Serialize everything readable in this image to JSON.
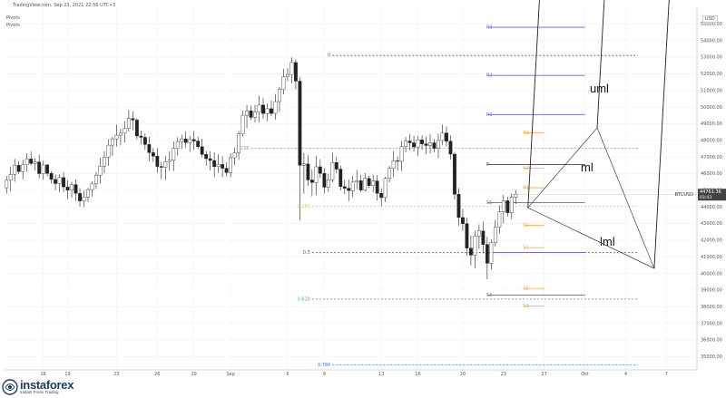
{
  "header": {
    "source": "TradingView.com, Sep 23, 2021 22:56 UTC+3",
    "indicator_1": "Pivots",
    "indicator_2": "Pivots"
  },
  "logo": {
    "name": "instaforex",
    "tagline": "Instant Forex Trading"
  },
  "colors": {
    "candle": "#222222",
    "pivot_line": "#7b5cc9",
    "pivot_p": "#444444",
    "pivot_mid": "#f0a93b",
    "fib": "#d7d26a",
    "fib_mid": "#bbbbbb",
    "fib_618": "#45b88b",
    "fib_786": "#3c7fd6",
    "fib_0236": "#e07b8a",
    "pitchfork": "#222222",
    "price_tag": "#444444"
  },
  "chart_data": {
    "type": "candlestick",
    "symbol": "BTCUSD",
    "last_price": "44761.36",
    "countdown": "03:43",
    "ylim": [
      34200,
      56000
    ],
    "y_ticks": [
      35000,
      36000,
      37000,
      38000,
      39000,
      40000,
      41000,
      42000,
      43000,
      44000,
      45000,
      46000,
      47000,
      48000,
      49000,
      50000,
      51000,
      52000,
      53000,
      54000,
      55000
    ],
    "y_tick_labels": [
      "35000.00",
      "36000.00",
      "37000.00",
      "38000.00",
      "39000.00",
      "40000.00",
      "41000.00",
      "42000.00",
      "43000.00",
      "44000.00",
      "45000.00",
      "46000.00",
      "47000.00",
      "48000.00",
      "49000.00",
      "50000.00",
      "51000.00",
      "52000.00",
      "53000.00",
      "54000.00",
      "55000.00"
    ],
    "axis_unit": "USD",
    "x_ticks": [
      "16",
      "19",
      "23",
      "26",
      "29",
      "Sep",
      "6",
      "9",
      "13",
      "16",
      "20",
      "23",
      "27",
      "Oct",
      "4",
      "7"
    ],
    "x_tick_bars": [
      9,
      15,
      27,
      37,
      46,
      55,
      69,
      78,
      92,
      101,
      112,
      122,
      132,
      142,
      152,
      162
    ],
    "bar_count": 170,
    "candles": [
      [
        45150,
        45860,
        44800,
        45600
      ],
      [
        45600,
        46420,
        44940,
        45960
      ],
      [
        45960,
        46890,
        45510,
        46500
      ],
      [
        46500,
        46760,
        45990,
        46120
      ],
      [
        46120,
        46840,
        45650,
        46530
      ],
      [
        46530,
        47220,
        46120,
        46890
      ],
      [
        46890,
        47330,
        46510,
        46610
      ],
      [
        46610,
        46920,
        46190,
        46700
      ],
      [
        46700,
        47140,
        45720,
        46000
      ],
      [
        46000,
        46770,
        45640,
        46520
      ],
      [
        46520,
        46580,
        45840,
        46010
      ],
      [
        46010,
        46140,
        45390,
        45650
      ],
      [
        45650,
        45950,
        45010,
        45400
      ],
      [
        45400,
        45960,
        44890,
        45760
      ],
      [
        45760,
        46080,
        44890,
        45200
      ],
      [
        45200,
        45600,
        44460,
        45000
      ],
      [
        45000,
        45510,
        44550,
        45340
      ],
      [
        45340,
        45650,
        44360,
        44810
      ],
      [
        44810,
        45120,
        44010,
        44360
      ],
      [
        44360,
        44980,
        43980,
        44590
      ],
      [
        44590,
        45150,
        44300,
        45040
      ],
      [
        45040,
        45540,
        44610,
        45380
      ],
      [
        45380,
        46110,
        45080,
        45910
      ],
      [
        45910,
        46950,
        45400,
        46450
      ],
      [
        46450,
        47350,
        46010,
        46990
      ],
      [
        46990,
        48050,
        46460,
        47710
      ],
      [
        47710,
        48200,
        47070,
        48090
      ],
      [
        48090,
        48940,
        47630,
        48310
      ],
      [
        48310,
        48700,
        47700,
        48430
      ],
      [
        48430,
        49150,
        47870,
        48720
      ],
      [
        48720,
        49840,
        48520,
        49310
      ],
      [
        49310,
        49740,
        48600,
        49220
      ],
      [
        49220,
        49310,
        48060,
        48260
      ],
      [
        48260,
        48590,
        47760,
        48180
      ],
      [
        48180,
        48410,
        47430,
        47750
      ],
      [
        47750,
        48220,
        46750,
        47260
      ],
      [
        47260,
        47540,
        46700,
        47050
      ],
      [
        47050,
        47540,
        46040,
        46430
      ],
      [
        46430,
        46710,
        45660,
        46380
      ],
      [
        46380,
        47070,
        45620,
        46720
      ],
      [
        46720,
        47320,
        46190,
        46800
      ],
      [
        46800,
        47930,
        46160,
        47520
      ],
      [
        47520,
        48190,
        47080,
        47930
      ],
      [
        47930,
        48340,
        47480,
        48090
      ],
      [
        48090,
        48560,
        47530,
        47870
      ],
      [
        47870,
        48270,
        47300,
        48050
      ],
      [
        48050,
        48560,
        47440,
        47960
      ],
      [
        47960,
        48210,
        47470,
        47620
      ],
      [
        47620,
        48100,
        46980,
        47160
      ],
      [
        47160,
        47370,
        46480,
        46900
      ],
      [
        46900,
        47340,
        46180,
        46790
      ],
      [
        46790,
        47280,
        45780,
        46420
      ],
      [
        46420,
        47160,
        46050,
        46550
      ],
      [
        46550,
        47040,
        45790,
        46320
      ],
      [
        46320,
        46680,
        45820,
        46060
      ],
      [
        46060,
        47220,
        45780,
        46950
      ],
      [
        46950,
        47550,
        46520,
        47250
      ],
      [
        47250,
        48560,
        46830,
        48390
      ],
      [
        48390,
        49780,
        48230,
        49510
      ],
      [
        49510,
        50130,
        48740,
        49780
      ],
      [
        49780,
        50090,
        49240,
        49380
      ],
      [
        49380,
        50130,
        49090,
        49700
      ],
      [
        49700,
        50680,
        49070,
        50120
      ],
      [
        50120,
        50540,
        49280,
        49610
      ],
      [
        49610,
        50210,
        49140,
        49900
      ],
      [
        49900,
        50400,
        49470,
        49620
      ],
      [
        49620,
        50790,
        49250,
        50330
      ],
      [
        50330,
        51220,
        49720,
        51050
      ],
      [
        51050,
        52300,
        50760,
        51820
      ],
      [
        51820,
        52340,
        51560,
        51960
      ],
      [
        51960,
        52990,
        51420,
        52680
      ],
      [
        52680,
        52880,
        51060,
        51560
      ],
      [
        51560,
        51790,
        43200,
        46500
      ],
      [
        46500,
        47250,
        44790,
        46580
      ],
      [
        46580,
        47110,
        45270,
        45620
      ],
      [
        45620,
        46250,
        44640,
        45470
      ],
      [
        45470,
        47070,
        44710,
        46410
      ],
      [
        46410,
        46870,
        45740,
        46010
      ],
      [
        46010,
        46320,
        44800,
        45180
      ],
      [
        45180,
        45990,
        44900,
        45630
      ],
      [
        45630,
        47250,
        45470,
        46670
      ],
      [
        46670,
        47000,
        46010,
        46270
      ],
      [
        46270,
        46480,
        44990,
        45220
      ],
      [
        45220,
        45630,
        44770,
        45120
      ],
      [
        45120,
        45660,
        44350,
        44980
      ],
      [
        44980,
        45850,
        44580,
        45490
      ],
      [
        45490,
        46230,
        45050,
        45570
      ],
      [
        45570,
        45910,
        44890,
        45010
      ],
      [
        45010,
        46030,
        44910,
        45710
      ],
      [
        45710,
        45870,
        45140,
        45280
      ],
      [
        45280,
        45940,
        44890,
        45560
      ],
      [
        45560,
        45910,
        44390,
        44820
      ],
      [
        44820,
        45120,
        44030,
        44560
      ],
      [
        44560,
        45810,
        44280,
        45710
      ],
      [
        45710,
        46460,
        45480,
        46310
      ],
      [
        46310,
        47350,
        45790,
        46770
      ],
      [
        46770,
        47030,
        46190,
        46740
      ],
      [
        46740,
        47960,
        46150,
        47620
      ],
      [
        47620,
        48200,
        47280,
        47960
      ],
      [
        47960,
        48370,
        47390,
        47850
      ],
      [
        47850,
        48280,
        47320,
        47600
      ],
      [
        47600,
        48260,
        47050,
        48030
      ],
      [
        48030,
        48300,
        47430,
        47790
      ],
      [
        47790,
        48220,
        47180,
        47690
      ],
      [
        47690,
        48380,
        47210,
        47850
      ],
      [
        47850,
        48070,
        47270,
        47520
      ],
      [
        47520,
        48410,
        46940,
        47990
      ],
      [
        47990,
        48950,
        47700,
        48440
      ],
      [
        48440,
        48830,
        47630,
        47950
      ],
      [
        47950,
        48310,
        46840,
        47170
      ],
      [
        47170,
        47310,
        44430,
        44760
      ],
      [
        44760,
        45150,
        42850,
        43360
      ],
      [
        43360,
        43890,
        42560,
        42990
      ],
      [
        42990,
        43370,
        41050,
        41520
      ],
      [
        41520,
        42280,
        40480,
        41100
      ],
      [
        41100,
        42570,
        40310,
        42240
      ],
      [
        42240,
        42940,
        41490,
        42550
      ],
      [
        42550,
        43120,
        41200,
        41740
      ],
      [
        41740,
        42200,
        39650,
        40610
      ],
      [
        40610,
        42050,
        40240,
        41840
      ],
      [
        41840,
        43220,
        41620,
        42780
      ],
      [
        42780,
        44090,
        42400,
        43700
      ],
      [
        43700,
        44720,
        43000,
        44370
      ],
      [
        44370,
        44610,
        43420,
        43650
      ],
      [
        43650,
        44820,
        43260,
        44580
      ],
      [
        44580,
        45010,
        44170,
        44761
      ]
    ],
    "pivot_levels": [
      {
        "label": "R3",
        "value": 54800
      },
      {
        "label": "R2",
        "value": 51900
      },
      {
        "label": "R1",
        "value": 49550
      },
      {
        "label": "P",
        "value": 46550
      },
      {
        "label": "S1",
        "value": 44250
      },
      {
        "label": "S2",
        "value": 41260
      },
      {
        "label": "S3",
        "value": 38700
      }
    ],
    "pivot_midpoints": [
      {
        "label": "R3",
        "value": 48450
      },
      {
        "label": "R2",
        "value": 46320
      },
      {
        "label": "R1",
        "value": 45150
      },
      {
        "label": "S1",
        "value": 42900
      },
      {
        "label": "S1",
        "value": 41550
      },
      {
        "label": "S2",
        "value": 39100
      },
      {
        "label": "S3",
        "value": 38050
      }
    ],
    "fibonacci": [
      {
        "label": "0",
        "value": 53100
      },
      {
        "label": "0.236",
        "value": 47520
      },
      {
        "label": "0.382",
        "value": 44050
      },
      {
        "label": "0.5",
        "value": 41250
      },
      {
        "label": "0.618",
        "value": 38460
      },
      {
        "label": "0.786",
        "value": 34500
      }
    ],
    "pitchfork_labels": [
      "uml",
      "ml",
      "lml"
    ],
    "pitchfork_points": [
      {
        "bar": 145,
        "price": 48750
      },
      {
        "bar": 128,
        "price": 43950
      },
      {
        "bar": 159,
        "price": 40300
      }
    ]
  }
}
